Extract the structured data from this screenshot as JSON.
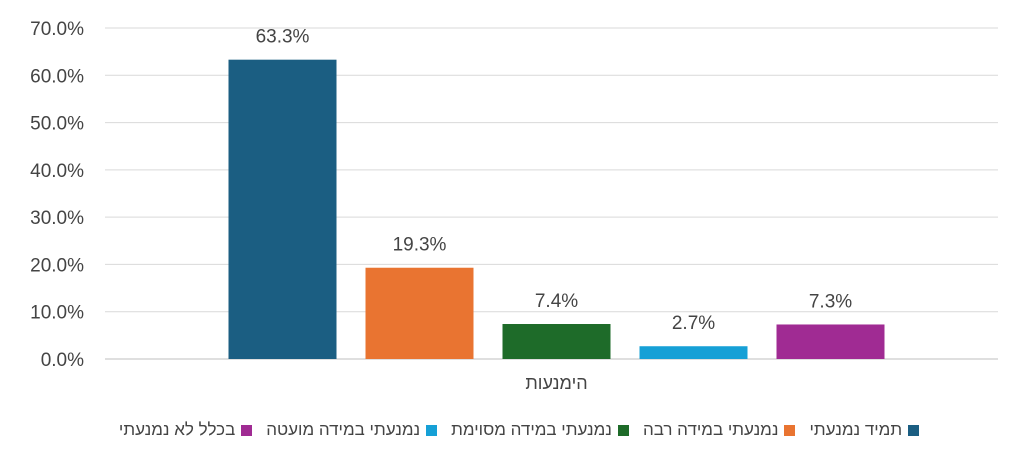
{
  "chart_data": {
    "type": "bar",
    "categories": [
      "הימנעות"
    ],
    "series": [
      {
        "name": "תמיד נמנעתי",
        "values": [
          63.3
        ],
        "label": "63.3%",
        "color": "#1b5e82"
      },
      {
        "name": "נמנעתי במידה רבה",
        "values": [
          19.3
        ],
        "label": "19.3%",
        "color": "#e97431"
      },
      {
        "name": "נמנעתי במידה מסוימת",
        "values": [
          7.4
        ],
        "label": "7.4%",
        "color": "#1e6b29"
      },
      {
        "name": "נמנעתי במידה מועטה",
        "values": [
          2.7
        ],
        "label": "2.7%",
        "color": "#16a0d6"
      },
      {
        "name": "בכלל לא נמנעתי",
        "values": [
          7.3
        ],
        "label": "7.3%",
        "color": "#a02b93"
      }
    ],
    "ylim": [
      0,
      70
    ],
    "yticks": [
      "0.0%",
      "10.0%",
      "20.0%",
      "30.0%",
      "40.0%",
      "50.0%",
      "60.0%",
      "70.0%"
    ],
    "grid": true,
    "legend_position": "bottom"
  }
}
